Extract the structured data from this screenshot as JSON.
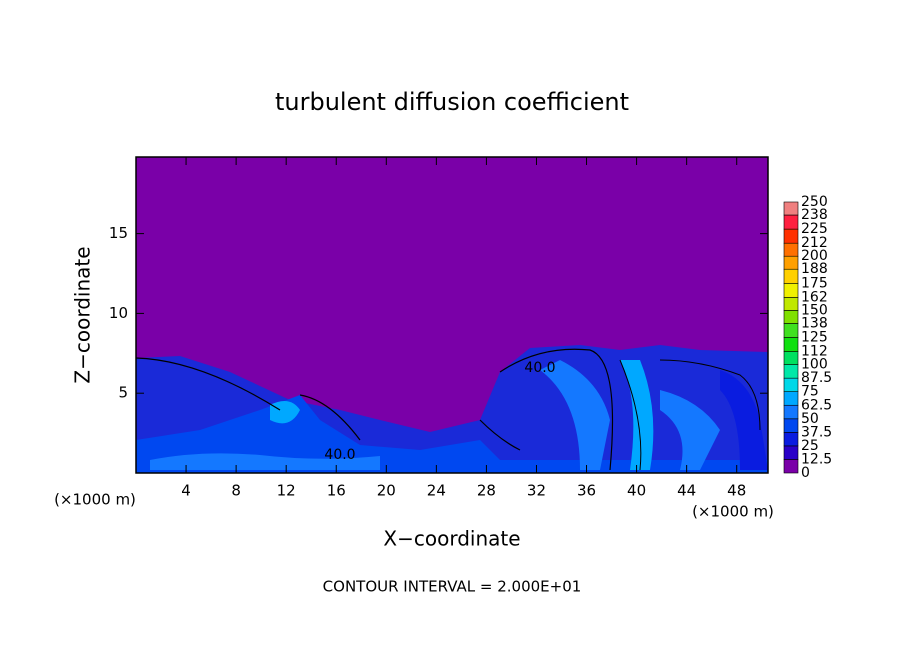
{
  "chart_data": {
    "type": "contour",
    "title": "turbulent diffusion coefficient",
    "x_label": "X−coordinate",
    "y_label": "Z−coordinate",
    "x_unit": "(×1000 m)",
    "footer": "CONTOUR INTERVAL = 2.000E+01",
    "xlim": [
      0,
      50.5
    ],
    "xticks": [
      4,
      8,
      12,
      16,
      20,
      24,
      28,
      32,
      36,
      40,
      44,
      48
    ],
    "ylim": [
      0,
      19.8
    ],
    "yticks": [
      5,
      10,
      15
    ],
    "contour_labels": [
      "40.0",
      "40.0"
    ],
    "colorbar": {
      "levels": [
        0,
        12.5,
        25,
        37.5,
        50,
        62.5,
        75,
        87.5,
        100,
        112,
        125,
        138,
        150,
        162,
        175,
        188,
        200,
        212,
        225,
        238,
        250
      ],
      "colors": [
        "#7a00a8",
        "#2a00c8",
        "#0a1ce0",
        "#0048f0",
        "#1478ff",
        "#00a8ff",
        "#00d8e8",
        "#00e8a8",
        "#00e060",
        "#10e010",
        "#40e020",
        "#80e000",
        "#c0e800",
        "#f0f000",
        "#ffd000",
        "#ffa000",
        "#ff7000",
        "#ff3000",
        "#ff2040",
        "#f08080"
      ]
    }
  }
}
